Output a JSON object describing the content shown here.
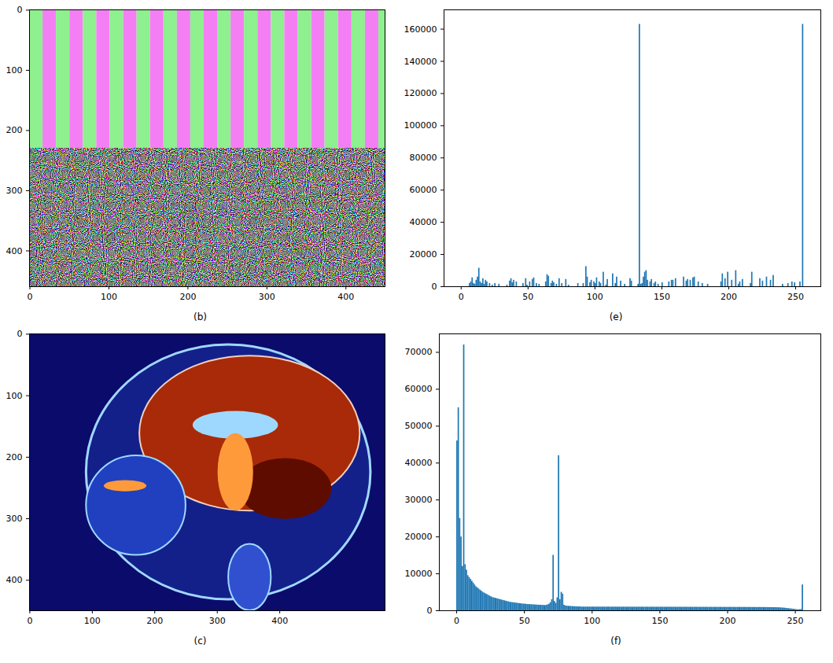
{
  "chart_data": [
    {
      "type": "image",
      "caption": "(b)",
      "xlim": [
        -0.5,
        449.5
      ],
      "ylim": [
        459.5,
        -0.5
      ],
      "xticks": [
        0,
        100,
        200,
        300,
        400
      ],
      "yticks": [
        0,
        100,
        200,
        300,
        400
      ],
      "colors": [
        "#8ef08e",
        "#f47ff4"
      ],
      "stripe_width": 17,
      "stripe_end": 230
    },
    {
      "type": "histogram",
      "caption": "(e)",
      "color": "#1f77b4",
      "xlim": [
        -12.8,
        268.8
      ],
      "ylim": [
        0,
        172000
      ],
      "xticks": [
        0,
        50,
        100,
        150,
        200,
        250
      ],
      "yticks": [
        0,
        20000,
        40000,
        60000,
        80000,
        100000,
        120000,
        140000,
        160000
      ],
      "bins": [
        0,
        1,
        2,
        3,
        4,
        5,
        6,
        7,
        8,
        9,
        10,
        11,
        12,
        13,
        14,
        15,
        16,
        17,
        18,
        19,
        20,
        21,
        22,
        23,
        24,
        25,
        26,
        27,
        28,
        29,
        30,
        31,
        32,
        33,
        34,
        35,
        36,
        37,
        38,
        39,
        40,
        41,
        42,
        43,
        44,
        45,
        46,
        47,
        48,
        49,
        50,
        51,
        52,
        53,
        54,
        55,
        56,
        57,
        58,
        59,
        60,
        61,
        62,
        63,
        64,
        65,
        66,
        67,
        68,
        69,
        70,
        71,
        72,
        73,
        74,
        75,
        76,
        77,
        78,
        79,
        80,
        81,
        82,
        83,
        84,
        85,
        86,
        87,
        88,
        89,
        90,
        91,
        92,
        93,
        94,
        95,
        96,
        97,
        98,
        99,
        100,
        101,
        102,
        103,
        104,
        105,
        106,
        107,
        108,
        109,
        110,
        111,
        112,
        113,
        114,
        115,
        116,
        117,
        118,
        119,
        120,
        121,
        122,
        123,
        124,
        125,
        126,
        127,
        128,
        129,
        130,
        131,
        132,
        133,
        134,
        135,
        136,
        137,
        138,
        139,
        140,
        141,
        142,
        143,
        144,
        145,
        146,
        147,
        148,
        149,
        150,
        151,
        152,
        153,
        154,
        155,
        156,
        157,
        158,
        159,
        160,
        161,
        162,
        163,
        164,
        165,
        166,
        167,
        168,
        169,
        170,
        171,
        172,
        173,
        174,
        175,
        176,
        177,
        178,
        179,
        180,
        181,
        182,
        183,
        184,
        185,
        186,
        187,
        188,
        189,
        190,
        191,
        192,
        193,
        194,
        195,
        196,
        197,
        198,
        199,
        200,
        201,
        202,
        203,
        204,
        205,
        206,
        207,
        208,
        209,
        210,
        211,
        212,
        213,
        214,
        215,
        216,
        217,
        218,
        219,
        220,
        221,
        222,
        223,
        224,
        225,
        226,
        227,
        228,
        229,
        230,
        231,
        232,
        233,
        234,
        235,
        236,
        237,
        238,
        239,
        240,
        241,
        242,
        243,
        244,
        245,
        246,
        247,
        248,
        249,
        250,
        251,
        252,
        253,
        254,
        255,
        256
      ],
      "counts": [
        0,
        0,
        0,
        0,
        0,
        0,
        2000,
        3000,
        5500,
        2000,
        1500,
        4000,
        6000,
        11500,
        3000,
        2000,
        5000,
        1500,
        4000,
        3000,
        0,
        2000,
        0,
        1000,
        0,
        2000,
        0,
        0,
        1500,
        0,
        0,
        0,
        0,
        0,
        1000,
        0,
        3500,
        5000,
        2500,
        4000,
        0,
        3000,
        0,
        0,
        0,
        0,
        2000,
        0,
        5000,
        1000,
        0,
        3000,
        0,
        4500,
        5500,
        0,
        2000,
        0,
        1500,
        0,
        0,
        0,
        0,
        3000,
        7500,
        6500,
        0,
        2000,
        3500,
        2500,
        0,
        1500,
        0,
        5000,
        0,
        2000,
        0,
        0,
        4500,
        0,
        1000,
        0,
        0,
        0,
        0,
        0,
        0,
        2000,
        0,
        0,
        0,
        2000,
        0,
        12500,
        6000,
        0,
        2500,
        4000,
        0,
        3000,
        2000,
        5500,
        0,
        3000,
        2000,
        0,
        9000,
        0,
        1000,
        4500,
        0,
        0,
        0,
        8000,
        0,
        2000,
        6000,
        0,
        0,
        3500,
        0,
        0,
        1500,
        0,
        0,
        0,
        5000,
        3500,
        0,
        0,
        0,
        0,
        1500,
        163000,
        1500,
        2000,
        6000,
        9000,
        10000,
        4000,
        0,
        3000,
        4500,
        0,
        2000,
        3000,
        0,
        1500,
        0,
        0,
        2500,
        0,
        0,
        0,
        0,
        3000,
        0,
        4000,
        4000,
        0,
        5000,
        0,
        0,
        0,
        0,
        0,
        6000,
        0,
        3500,
        4500,
        0,
        4000,
        0,
        5500,
        6000,
        0,
        0,
        3000,
        0,
        0,
        2000,
        0,
        0,
        0,
        1500,
        0,
        0,
        0,
        0,
        0,
        0,
        0,
        0,
        0,
        3000,
        8000,
        0,
        5000,
        0,
        9000,
        0,
        0,
        4000,
        0,
        0,
        10000,
        0,
        1500,
        3000,
        0,
        4500,
        0,
        0,
        0,
        0,
        0,
        2000,
        9000,
        0,
        0,
        0,
        0,
        0,
        5000,
        0,
        3500,
        0,
        0,
        6000,
        0,
        0,
        4000,
        0,
        7000,
        0,
        0,
        0,
        0,
        0,
        0,
        1500,
        0,
        0,
        0,
        2000,
        0,
        0,
        3000,
        0,
        2500,
        0,
        0,
        0,
        3000,
        0,
        163000
      ]
    },
    {
      "type": "image",
      "caption": "(c)",
      "xlim": [
        -0.5,
        568.5
      ],
      "ylim": [
        449.5,
        -0.5
      ],
      "xticks": [
        0,
        100,
        200,
        300,
        400
      ],
      "yticks": [
        0,
        100,
        200,
        300,
        400
      ],
      "colors": [
        "#0b0b6b",
        "#a82a08",
        "#5e0c00",
        "#9fd8ff",
        "#ff9a3a"
      ]
    },
    {
      "type": "histogram",
      "caption": "(f)",
      "color": "#1f77b4",
      "xlim": [
        -12.8,
        268.8
      ],
      "ylim": [
        0,
        75000
      ],
      "xticks": [
        0,
        50,
        100,
        150,
        200,
        250
      ],
      "yticks": [
        0,
        10000,
        20000,
        30000,
        40000,
        50000,
        60000,
        70000
      ],
      "bins": [
        0,
        1,
        2,
        3,
        4,
        5,
        6,
        7,
        8,
        9,
        10,
        11,
        12,
        13,
        14,
        15,
        16,
        17,
        18,
        19,
        20,
        21,
        22,
        23,
        24,
        25,
        26,
        27,
        28,
        29,
        30,
        31,
        32,
        33,
        34,
        35,
        36,
        37,
        38,
        39,
        40,
        41,
        42,
        43,
        44,
        45,
        46,
        47,
        48,
        49,
        50,
        51,
        52,
        53,
        54,
        55,
        56,
        57,
        58,
        59,
        60,
        61,
        62,
        63,
        64,
        65,
        66,
        67,
        68,
        69,
        70,
        71,
        72,
        73,
        74,
        75,
        76,
        77,
        78,
        79,
        80,
        81,
        82,
        83,
        84,
        85,
        86,
        87,
        88,
        89,
        90,
        91,
        92,
        93,
        94,
        95,
        96,
        97,
        98,
        99,
        100,
        101,
        102,
        103,
        104,
        105,
        106,
        107,
        108,
        109,
        110,
        111,
        112,
        113,
        114,
        115,
        116,
        117,
        118,
        119,
        120,
        121,
        122,
        123,
        124,
        125,
        126,
        127,
        128,
        129,
        130,
        131,
        132,
        133,
        134,
        135,
        136,
        137,
        138,
        139,
        140,
        141,
        142,
        143,
        144,
        145,
        146,
        147,
        148,
        149,
        150,
        151,
        152,
        153,
        154,
        155,
        156,
        157,
        158,
        159,
        160,
        161,
        162,
        163,
        164,
        165,
        166,
        167,
        168,
        169,
        170,
        171,
        172,
        173,
        174,
        175,
        176,
        177,
        178,
        179,
        180,
        181,
        182,
        183,
        184,
        185,
        186,
        187,
        188,
        189,
        190,
        191,
        192,
        193,
        194,
        195,
        196,
        197,
        198,
        199,
        200,
        201,
        202,
        203,
        204,
        205,
        206,
        207,
        208,
        209,
        210,
        211,
        212,
        213,
        214,
        215,
        216,
        217,
        218,
        219,
        220,
        221,
        222,
        223,
        224,
        225,
        226,
        227,
        228,
        229,
        230,
        231,
        232,
        233,
        234,
        235,
        236,
        237,
        238,
        239,
        240,
        241,
        242,
        243,
        244,
        245,
        246,
        247,
        248,
        249,
        250,
        251,
        252,
        253,
        254,
        255,
        256
      ],
      "counts": [
        46000,
        55000,
        25000,
        20000,
        12000,
        72000,
        12500,
        11000,
        9500,
        9000,
        8500,
        8000,
        7500,
        7000,
        6500,
        6200,
        5900,
        5600,
        5300,
        5000,
        4800,
        4600,
        4400,
        4200,
        4000,
        3800,
        3600,
        3500,
        3400,
        3300,
        3200,
        3100,
        3000,
        2900,
        2800,
        2700,
        2600,
        2500,
        2400,
        2300,
        2250,
        2200,
        2150,
        2100,
        2050,
        2000,
        1950,
        1900,
        1850,
        1800,
        1800,
        1750,
        1700,
        1700,
        1650,
        1650,
        1600,
        1600,
        1550,
        1550,
        1500,
        1500,
        1500,
        1450,
        1450,
        1400,
        1500,
        1600,
        1800,
        2200,
        3000,
        15000,
        2500,
        2000,
        3500,
        42000,
        3000,
        5000,
        4500,
        1500,
        1300,
        1250,
        1200,
        1200,
        1150,
        1150,
        1100,
        1100,
        1100,
        1050,
        1050,
        1050,
        1000,
        1000,
        1000,
        1000,
        1000,
        1000,
        1000,
        1000,
        1000,
        1000,
        990,
        1000,
        980,
        1000,
        990,
        980,
        1000,
        990,
        980,
        990,
        1000,
        980,
        970,
        990,
        980,
        1000,
        970,
        980,
        990,
        970,
        980,
        990,
        970,
        980,
        960,
        990,
        970,
        980,
        960,
        980,
        970,
        960,
        990,
        970,
        960,
        980,
        970,
        960,
        980,
        960,
        970,
        950,
        980,
        960,
        970,
        950,
        960,
        970,
        950,
        960,
        970,
        950,
        960,
        940,
        970,
        950,
        960,
        940,
        950,
        960,
        940,
        950,
        960,
        940,
        950,
        930,
        960,
        940,
        950,
        930,
        940,
        950,
        930,
        940,
        950,
        930,
        940,
        920,
        940,
        930,
        950,
        920,
        940,
        930,
        920,
        940,
        930,
        920,
        930,
        920,
        940,
        910,
        930,
        920,
        910,
        930,
        920,
        910,
        920,
        910,
        930,
        900,
        920,
        910,
        900,
        920,
        910,
        900,
        910,
        900,
        920,
        890,
        910,
        900,
        890,
        910,
        900,
        890,
        900,
        890,
        880,
        900,
        890,
        880,
        890,
        870,
        880,
        870,
        860,
        870,
        850,
        860,
        840,
        850,
        830,
        820,
        800,
        780,
        760,
        720,
        700,
        650,
        600,
        560,
        520,
        480,
        430,
        380,
        330,
        280,
        250,
        300,
        350,
        7000
      ]
    }
  ]
}
